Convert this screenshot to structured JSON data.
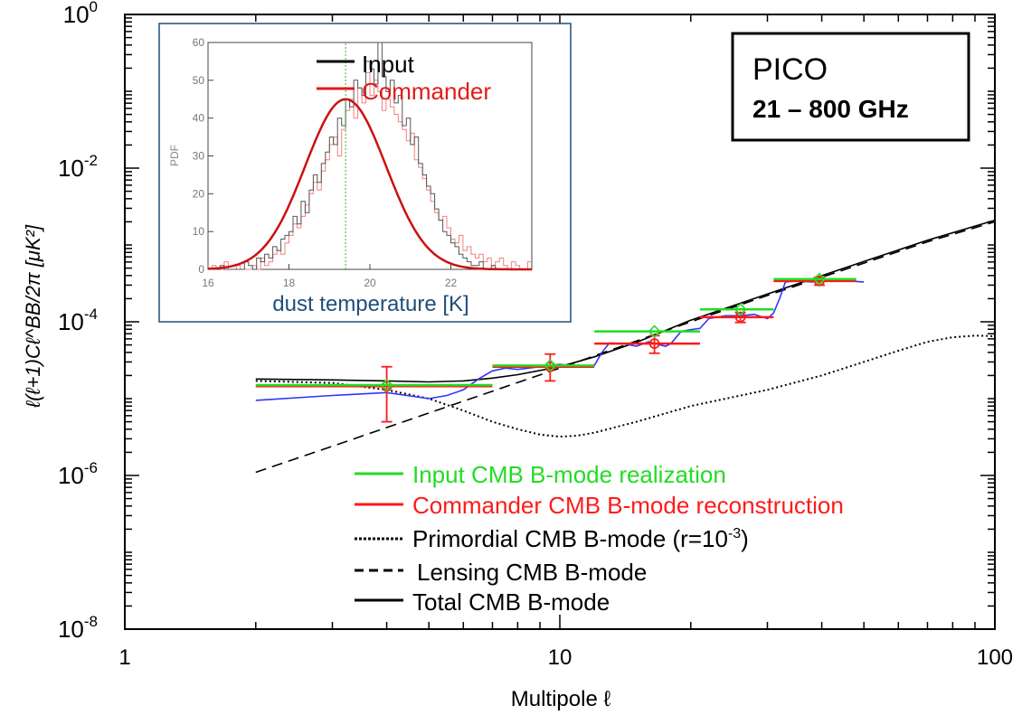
{
  "chart_data": {
    "type": "line",
    "title": "",
    "xlabel": "Multipole ℓ",
    "ylabel": "ℓ(ℓ+1)Cℓ^BB/2π [μK²]",
    "xscale": "log",
    "yscale": "log",
    "xlim": [
      1,
      100
    ],
    "ylim": [
      1e-08,
      1
    ],
    "x_ticks": [
      {
        "value": 1,
        "label": "1"
      },
      {
        "value": 10,
        "label": "10"
      },
      {
        "value": 100,
        "label": "100"
      }
    ],
    "y_ticks": [
      {
        "value": 1,
        "base": "10",
        "exp": "0"
      },
      {
        "value": 0.01,
        "base": "10",
        "exp": "-2"
      },
      {
        "value": 0.0001,
        "base": "10",
        "exp": "-4"
      },
      {
        "value": 1e-06,
        "base": "10",
        "exp": "-6"
      },
      {
        "value": 1e-08,
        "base": "10",
        "exp": "-8"
      }
    ],
    "annotation": {
      "line1": "PICO",
      "line2": "21 – 800 GHz"
    },
    "legend": {
      "placement": "bottom-center",
      "entries": [
        {
          "label": "Input CMB B-mode realization",
          "style": "solid",
          "color": "#22dd22"
        },
        {
          "label": "Commander CMB B-mode reconstruction",
          "style": "solid",
          "color": "#ff1a1a"
        },
        {
          "label_prefix": "Primordial CMB B-mode (r=10",
          "label_sup": "-3",
          "label_suffix": ")",
          "style": "dotted",
          "color": "#000000"
        },
        {
          "label": "Lensing CMB B-mode",
          "style": "dashed",
          "color": "#000000"
        },
        {
          "label": "Total CMB B-mode",
          "style": "solid",
          "color": "#000000"
        }
      ]
    },
    "series": [
      {
        "name": "Primordial CMB B-mode (r=10^-3)",
        "style": "dotted",
        "color": "#000000",
        "x": [
          2,
          3,
          4,
          5,
          6,
          7,
          8,
          9,
          10,
          11,
          12,
          15,
          20,
          30,
          40,
          50,
          60,
          70,
          80,
          90,
          100
        ],
        "y": [
          1.7e-05,
          1.6e-05,
          1.3e-05,
          1e-05,
          7e-06,
          5e-06,
          4e-06,
          3.4e-06,
          3.2e-06,
          3.3e-06,
          3.6e-06,
          5e-06,
          8e-06,
          1.3e-05,
          2e-05,
          3e-05,
          4.2e-05,
          5.5e-05,
          6.3e-05,
          6.6e-05,
          6.5e-05
        ]
      },
      {
        "name": "Lensing CMB B-mode",
        "style": "dashed",
        "color": "#000000",
        "x": [
          2,
          3,
          5,
          10,
          20,
          30,
          50,
          70,
          100
        ],
        "y": [
          1.1e-06,
          2.4e-06,
          6.5e-06,
          2.5e-05,
          0.0001,
          0.00022,
          0.00058,
          0.0011,
          0.002
        ]
      },
      {
        "name": "Total CMB B-mode",
        "style": "solid",
        "color": "#000000",
        "x": [
          2,
          3,
          4,
          5,
          6,
          7,
          8,
          10,
          12,
          15,
          20,
          30,
          50,
          70,
          100
        ],
        "y": [
          1.8e-05,
          1.75e-05,
          1.7e-05,
          1.65e-05,
          1.7e-05,
          1.85e-05,
          2.05e-05,
          2.6e-05,
          3.5e-05,
          5.4e-05,
          0.000105,
          0.00023,
          0.00061,
          0.00115,
          0.0021
        ]
      },
      {
        "name": "Commander per-ℓ spectrum",
        "style": "solid",
        "color": "#3333ff",
        "x": [
          2,
          3,
          4,
          5,
          5.5,
          6,
          6.5,
          7,
          7.5,
          8,
          9,
          10,
          11,
          12,
          12.5,
          13,
          14,
          15,
          16,
          17,
          17.5,
          18,
          19,
          20,
          21,
          22,
          24,
          26,
          28,
          30,
          31,
          32,
          33,
          35,
          38,
          42,
          46,
          50
        ],
        "y": [
          9.5e-06,
          1.1e-05,
          1.2e-05,
          1e-05,
          1.1e-05,
          1.3e-05,
          1.8e-05,
          2.3e-05,
          2.5e-05,
          2.4e-05,
          2.6e-05,
          2.8e-05,
          2.6e-05,
          2.7e-05,
          4e-05,
          5.3e-05,
          5.2e-05,
          4.8e-05,
          5.5e-05,
          5e-05,
          4.8e-05,
          5.2e-05,
          7.5e-05,
          7.9e-05,
          8.2e-05,
          0.00011,
          0.00012,
          0.00012,
          0.000125,
          0.00011,
          0.00013,
          0.0002,
          0.00033,
          0.00034,
          0.00033,
          0.00035,
          0.00034,
          0.00033
        ]
      }
    ],
    "input_bins": {
      "name": "Input CMB B-mode realization",
      "color": "#22dd22",
      "bins": [
        {
          "x_lo": 2,
          "x_hi": 7,
          "x_mid": 4,
          "y": 1.5e-05
        },
        {
          "x_lo": 7,
          "x_hi": 12,
          "x_mid": 9.5,
          "y": 2.7e-05
        },
        {
          "x_lo": 12,
          "x_hi": 21,
          "x_mid": 16.5,
          "y": 7.5e-05
        },
        {
          "x_lo": 21,
          "x_hi": 31,
          "x_mid": 26,
          "y": 0.000145
        },
        {
          "x_lo": 31,
          "x_hi": 48,
          "x_mid": 39.5,
          "y": 0.00036
        }
      ]
    },
    "commander_bins": {
      "name": "Commander CMB B-mode reconstruction",
      "color": "#ff1a1a",
      "bins": [
        {
          "x_lo": 2,
          "x_hi": 7,
          "x_mid": 4,
          "y": 1.45e-05,
          "err_lo": 5e-06,
          "err_hi": 2.6e-05
        },
        {
          "x_lo": 7,
          "x_hi": 12,
          "x_mid": 9.5,
          "y": 2.6e-05,
          "err_lo": 1.7e-05,
          "err_hi": 3.8e-05
        },
        {
          "x_lo": 12,
          "x_hi": 21,
          "x_mid": 16.5,
          "y": 5.2e-05,
          "err_lo": 3.9e-05,
          "err_hi": 6.6e-05
        },
        {
          "x_lo": 21,
          "x_hi": 31,
          "x_mid": 26,
          "y": 0.000115,
          "err_lo": 9.8e-05,
          "err_hi": 0.000132
        },
        {
          "x_lo": 31,
          "x_hi": 48,
          "x_mid": 39.5,
          "y": 0.00034,
          "err_lo": 0.0003,
          "err_hi": 0.00038
        }
      ]
    },
    "inset": {
      "type": "histogram",
      "xlabel": "dust temperature [K]",
      "ylabel": "PDF",
      "xlim": [
        16,
        24
      ],
      "ylim": [
        0,
        60
      ],
      "x_ticks": [
        "16",
        "18",
        "20",
        "22"
      ],
      "y_ticks": [
        "0",
        "10",
        "20",
        "30",
        "40",
        "50",
        "60"
      ],
      "marker_line_x": 19.4,
      "legend": [
        {
          "label": "Input",
          "color": "#000000"
        },
        {
          "label": "Commander",
          "color": "#e31a1a"
        }
      ],
      "fit_curve": {
        "name": "Gaussian fit",
        "mean": 19.4,
        "sigma": 1.0,
        "peak": 45,
        "color": "#cc1010"
      },
      "input_hist": [
        0,
        0,
        0,
        1,
        0,
        0,
        0,
        0,
        0,
        2,
        1,
        0,
        3,
        2,
        4,
        3,
        6,
        5,
        8,
        9,
        10,
        14,
        12,
        18,
        15,
        21,
        25,
        23,
        28,
        31,
        35,
        33,
        40,
        38,
        45,
        43,
        50,
        48,
        46,
        55,
        53,
        49,
        60,
        51,
        47,
        50,
        44,
        46,
        38,
        40,
        33,
        35,
        28,
        25,
        22,
        20,
        16,
        13,
        10,
        9,
        7,
        6,
        4,
        3,
        2,
        1,
        1,
        2,
        0,
        0,
        1,
        0,
        0,
        0,
        0,
        0,
        0,
        0,
        0,
        0
      ],
      "commander_hist": [
        0,
        1,
        0,
        0,
        2,
        0,
        0,
        1,
        0,
        0,
        0,
        1,
        0,
        3,
        1,
        2,
        4,
        5,
        4,
        7,
        9,
        12,
        11,
        14,
        17,
        20,
        23,
        21,
        26,
        29,
        33,
        35,
        30,
        37,
        42,
        45,
        40,
        48,
        44,
        52,
        46,
        50,
        47,
        42,
        45,
        43,
        41,
        39,
        37,
        34,
        36,
        29,
        27,
        24,
        21,
        18,
        15,
        13,
        14,
        11,
        8,
        7,
        9,
        5,
        6,
        4,
        3,
        4,
        2,
        3,
        1,
        2,
        3,
        1,
        0,
        2,
        1,
        0,
        0,
        2
      ]
    }
  }
}
